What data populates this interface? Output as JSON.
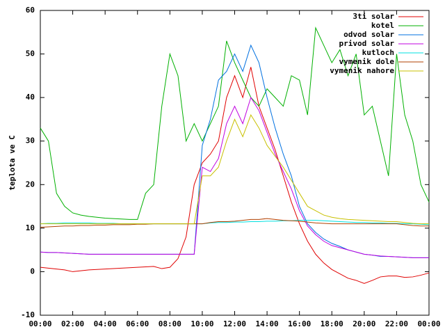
{
  "chart_data": {
    "type": "line",
    "ylabel": "teplota ve C",
    "x": [
      0,
      0.5,
      1,
      1.5,
      2,
      2.5,
      3,
      3.5,
      4,
      4.5,
      5,
      5.5,
      6,
      6.5,
      7,
      7.5,
      8,
      8.5,
      9,
      9.5,
      10,
      10.5,
      11,
      11.5,
      12,
      12.5,
      13,
      13.5,
      14,
      14.5,
      15,
      15.5,
      16,
      16.5,
      17,
      17.5,
      18,
      18.5,
      19,
      19.5,
      20,
      20.5,
      21,
      21.5,
      22,
      22.5,
      23,
      23.5,
      24
    ],
    "xlim": [
      0,
      24
    ],
    "xticks": [
      {
        "value": 0,
        "label": "00:00"
      },
      {
        "value": 2,
        "label": "02:00"
      },
      {
        "value": 4,
        "label": "04:00"
      },
      {
        "value": 6,
        "label": "06:00"
      },
      {
        "value": 8,
        "label": "08:00"
      },
      {
        "value": 10,
        "label": "10:00"
      },
      {
        "value": 12,
        "label": "12:00"
      },
      {
        "value": 14,
        "label": "14:00"
      },
      {
        "value": 16,
        "label": "16:00"
      },
      {
        "value": 18,
        "label": "18:00"
      },
      {
        "value": 20,
        "label": "20:00"
      },
      {
        "value": 22,
        "label": "22:00"
      },
      {
        "value": 24,
        "label": "00:00"
      }
    ],
    "ylim": [
      -10,
      60
    ],
    "yticks": [
      -10,
      0,
      10,
      20,
      30,
      40,
      50,
      60
    ],
    "legend": "top-right",
    "series": [
      {
        "name": "3ti solar",
        "color": "#e00000",
        "values": [
          1,
          0.8,
          0.6,
          0.4,
          0,
          0.2,
          0.4,
          0.5,
          0.6,
          0.7,
          0.8,
          0.9,
          1,
          1.1,
          1.2,
          0.7,
          1,
          3,
          8,
          20,
          25,
          27,
          30,
          40,
          45,
          40,
          47,
          38,
          33,
          28,
          22,
          16,
          11,
          7,
          4,
          2,
          0.5,
          -0.5,
          -1.5,
          -2,
          -2.7,
          -2,
          -1.2,
          -1,
          -1,
          -1.3,
          -1.2,
          -0.8,
          -0.3
        ]
      },
      {
        "name": "kotel",
        "color": "#00b000",
        "values": [
          33,
          30,
          18,
          15,
          13.5,
          13,
          12.7,
          12.5,
          12.3,
          12.2,
          12.1,
          12,
          12,
          18,
          20,
          38,
          50,
          45,
          30,
          34,
          30,
          34,
          38,
          53,
          48,
          44,
          40,
          38,
          42,
          40,
          38,
          45,
          44,
          36,
          56,
          52,
          48,
          51,
          45,
          50,
          36,
          38,
          30,
          22,
          50,
          36,
          30,
          20,
          16
        ]
      },
      {
        "name": "odvod solar",
        "color": "#0070e0",
        "values": [
          4.5,
          4.4,
          4.4,
          4.3,
          4.2,
          4.1,
          4,
          4,
          4,
          4,
          4,
          4,
          4,
          4,
          4,
          4,
          4,
          4,
          4,
          4,
          29,
          35,
          44,
          46,
          50,
          46,
          52,
          48,
          40,
          33,
          27,
          22,
          15,
          11,
          9,
          7.5,
          6.5,
          5.8,
          5,
          4.5,
          4,
          3.8,
          3.5,
          3.5,
          3.4,
          3.3,
          3.2,
          3.2,
          3.2
        ]
      },
      {
        "name": "privod solar",
        "color": "#c000e0",
        "values": [
          4.5,
          4.4,
          4.4,
          4.3,
          4.2,
          4.1,
          4,
          4,
          4,
          4,
          4,
          4,
          4,
          4,
          4,
          4,
          4,
          4,
          4,
          4,
          24,
          23,
          26,
          34,
          38,
          34,
          40,
          37,
          32,
          27,
          23,
          19,
          14,
          10.5,
          8.5,
          7,
          6,
          5.5,
          5,
          4.5,
          4,
          3.8,
          3.6,
          3.5,
          3.4,
          3.3,
          3.2,
          3.2,
          3.2
        ]
      },
      {
        "name": "kutloch",
        "color": "#00e0e0",
        "values": [
          11,
          11.1,
          11.1,
          11.2,
          11.2,
          11.2,
          11.2,
          11.1,
          11.1,
          11.1,
          11,
          11,
          11,
          11,
          11,
          11,
          11,
          11,
          11,
          11,
          11,
          11.2,
          11.3,
          11.3,
          11.4,
          11.4,
          11.5,
          11.5,
          11.6,
          11.6,
          11.7,
          11.7,
          11.8,
          11.8,
          11.8,
          11.7,
          11.6,
          11.5,
          11.4,
          11.3,
          11.3,
          11.2,
          11.2,
          11.1,
          11.1,
          11,
          11,
          10.9,
          10.8
        ]
      },
      {
        "name": "vymenik dole",
        "color": "#b04000",
        "values": [
          10.2,
          10.3,
          10.4,
          10.5,
          10.5,
          10.6,
          10.6,
          10.7,
          10.7,
          10.8,
          10.8,
          10.8,
          10.9,
          10.9,
          11,
          11,
          11,
          11,
          11,
          11,
          11,
          11.3,
          11.5,
          11.5,
          11.6,
          11.8,
          12,
          12,
          12.2,
          12,
          11.8,
          11.7,
          11.6,
          11.4,
          11.2,
          11.1,
          11,
          11,
          11,
          11,
          11,
          11,
          11,
          11,
          11,
          10.8,
          10.6,
          10.5,
          10.5
        ]
      },
      {
        "name": "vymenik nahore",
        "color": "#c8c000",
        "values": [
          11,
          11,
          11,
          11,
          11,
          11,
          11,
          11,
          11,
          11,
          11,
          11,
          11,
          11,
          11,
          11,
          11,
          11,
          11,
          11,
          22,
          22,
          24,
          30,
          35,
          31,
          36,
          33,
          29,
          26.5,
          24,
          21,
          18,
          15,
          14,
          13,
          12.5,
          12.2,
          12,
          11.9,
          11.8,
          11.7,
          11.6,
          11.5,
          11.5,
          11.3,
          11.1,
          11,
          11
        ]
      }
    ]
  }
}
